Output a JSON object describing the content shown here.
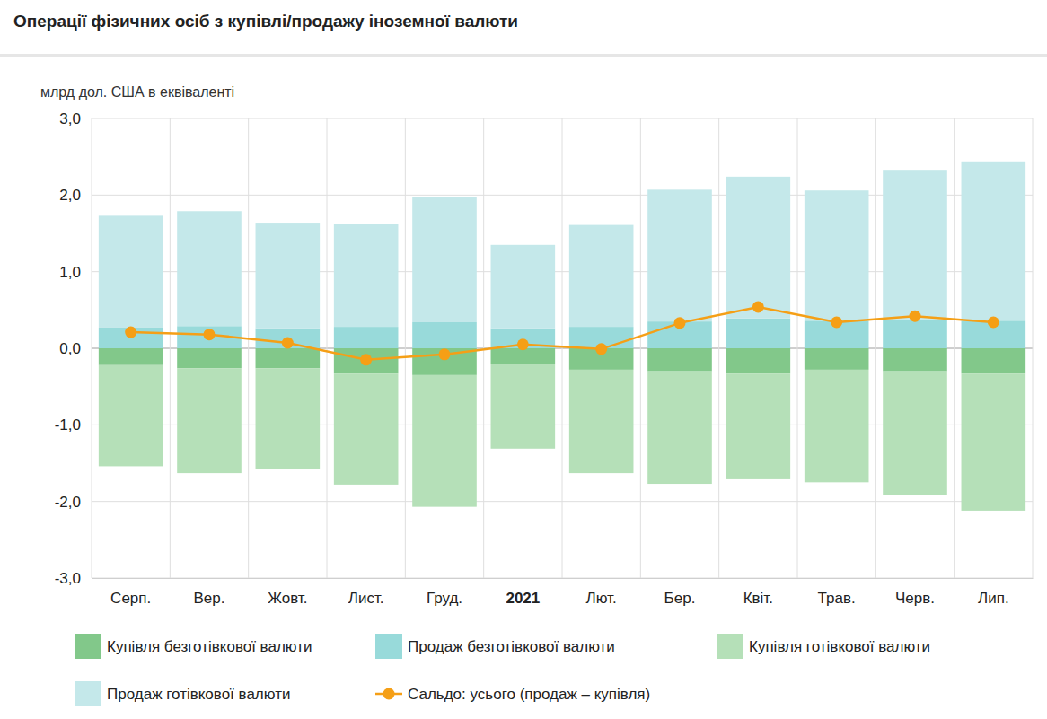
{
  "chart_data": {
    "type": "bar",
    "title": "Операції фізичних осіб з купівлі/продажу іноземної валюти",
    "y_label": "млрд дол. США в еквіваленті",
    "stacked": true,
    "grid": true,
    "legend": "bottom",
    "categories": [
      "Серп.",
      "Вер.",
      "Жовт.",
      "Лист.",
      "Груд.",
      "2021",
      "Лют.",
      "Бер.",
      "Квіт.",
      "Трав.",
      "Черв.",
      "Лип."
    ],
    "ylim": [
      -3,
      3
    ],
    "yticks": [
      {
        "value": 3,
        "label": "3,0"
      },
      {
        "value": 2,
        "label": "2,0"
      },
      {
        "value": 1,
        "label": "1,0"
      },
      {
        "value": 0,
        "label": "0,0"
      },
      {
        "value": -1,
        "label": "-1,0"
      },
      {
        "value": -2,
        "label": "-2,0"
      },
      {
        "value": -3,
        "label": "-3,0"
      }
    ],
    "series": [
      {
        "name": "Купівля безготівкової валюти",
        "color": "#82c88a",
        "type": "bar",
        "values": [
          -0.22,
          -0.26,
          -0.26,
          -0.33,
          -0.35,
          -0.21,
          -0.28,
          -0.3,
          -0.33,
          -0.28,
          -0.3,
          -0.33
        ]
      },
      {
        "name": "Продаж безготівкової валюти",
        "color": "#98dada",
        "type": "bar",
        "values": [
          0.27,
          0.29,
          0.26,
          0.28,
          0.34,
          0.26,
          0.28,
          0.35,
          0.39,
          0.36,
          0.38,
          0.36
        ]
      },
      {
        "name": "Купівля готівкової валюти",
        "color": "#b5e0b8",
        "type": "bar",
        "values": [
          -1.32,
          -1.37,
          -1.32,
          -1.45,
          -1.72,
          -1.1,
          -1.35,
          -1.47,
          -1.38,
          -1.47,
          -1.62,
          -1.79
        ]
      },
      {
        "name": "Продаж готівкової валюти",
        "color": "#c4e8ea",
        "type": "bar",
        "values": [
          1.46,
          1.5,
          1.38,
          1.34,
          1.64,
          1.09,
          1.33,
          1.72,
          1.85,
          1.7,
          1.95,
          2.08
        ]
      },
      {
        "name": "Сальдо: усього (продаж – купівля)",
        "color": "#f59f16",
        "type": "line",
        "marker": "circle",
        "values": [
          0.21,
          0.18,
          0.07,
          -0.15,
          -0.08,
          0.05,
          -0.01,
          0.33,
          0.54,
          0.34,
          0.42,
          0.34
        ]
      }
    ]
  }
}
